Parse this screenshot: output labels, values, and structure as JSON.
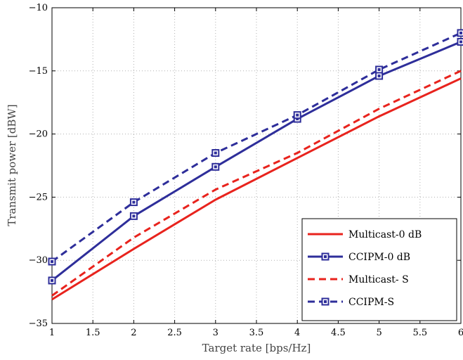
{
  "chart_data": {
    "type": "line",
    "title": "",
    "xlabel": "Target rate [bps/Hz]",
    "ylabel": "Transmit power [dBW]",
    "xlim": [
      1,
      6
    ],
    "ylim": [
      -35,
      -10
    ],
    "xticks": [
      "1",
      "1.5",
      "2",
      "2.5",
      "3",
      "3.5",
      "4",
      "4.5",
      "5",
      "5.5",
      "6"
    ],
    "yticks": [
      "-35",
      "-30",
      "-25",
      "-20",
      "-15",
      "-10"
    ],
    "grid": true,
    "legend_position": "bottom-right",
    "x": [
      1,
      2,
      3,
      4,
      5,
      6
    ],
    "series": [
      {
        "name": "Multicast-0 dB",
        "color": "#e8231d",
        "dash": "solid",
        "marker": "none",
        "values": [
          -33.1,
          -29.1,
          -25.2,
          -21.9,
          -18.6,
          -15.6
        ]
      },
      {
        "name": "CCIPM-0 dB",
        "color": "#2e2e9a",
        "dash": "solid",
        "marker": "square",
        "values": [
          -31.6,
          -26.5,
          -22.6,
          -18.8,
          -15.4,
          -12.7
        ]
      },
      {
        "name": "Multicast- S",
        "color": "#e8231d",
        "dash": "dashed",
        "marker": "none",
        "values": [
          -32.8,
          -28.2,
          -24.4,
          -21.5,
          -18.0,
          -15.0
        ]
      },
      {
        "name": "CCIPM-S",
        "color": "#2e2e9a",
        "dash": "dashed",
        "marker": "square",
        "values": [
          -30.1,
          -25.4,
          -21.5,
          -18.5,
          -14.9,
          -12.0
        ]
      }
    ]
  }
}
